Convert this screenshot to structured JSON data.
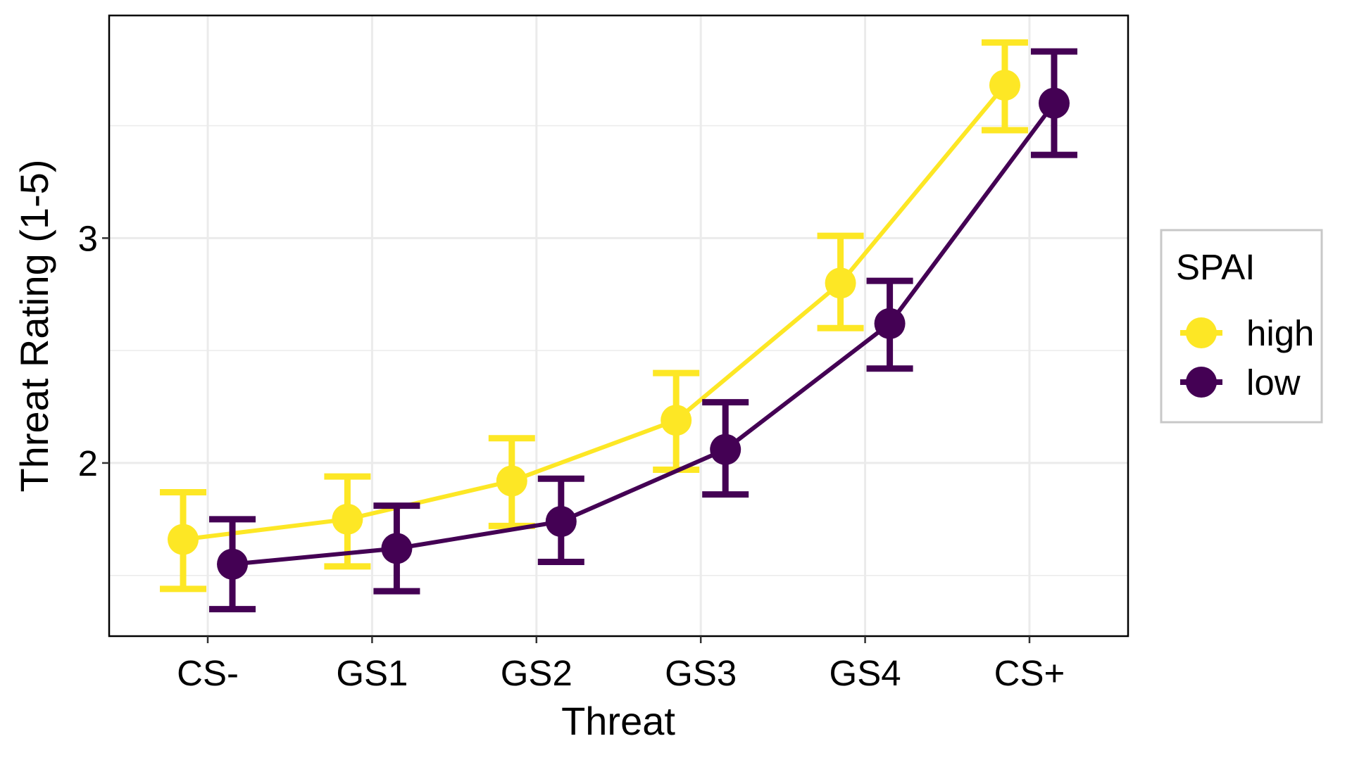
{
  "chart_data": {
    "type": "line",
    "title": "",
    "xlabel": "Threat",
    "ylabel": "Threat Rating (1-5)",
    "categories": [
      "CS-",
      "GS1",
      "GS2",
      "GS3",
      "GS4",
      "CS+"
    ],
    "ylim": [
      1.23,
      3.99
    ],
    "yticks": [
      2,
      3
    ],
    "grid": true,
    "error_bars": true,
    "legend": {
      "title": "SPAI",
      "position": "right"
    },
    "series": [
      {
        "name": "high",
        "color": "#FDE725",
        "values": [
          1.66,
          1.75,
          1.92,
          2.19,
          2.8,
          3.68
        ],
        "lower": [
          1.44,
          1.54,
          1.72,
          1.97,
          2.6,
          3.48
        ],
        "upper": [
          1.87,
          1.94,
          2.11,
          2.4,
          3.01,
          3.87
        ]
      },
      {
        "name": "low",
        "color": "#440154",
        "values": [
          1.55,
          1.62,
          1.74,
          2.06,
          2.62,
          3.6
        ],
        "lower": [
          1.35,
          1.43,
          1.56,
          1.86,
          2.42,
          3.37
        ],
        "upper": [
          1.75,
          1.81,
          1.93,
          2.27,
          2.81,
          3.83
        ]
      }
    ]
  }
}
